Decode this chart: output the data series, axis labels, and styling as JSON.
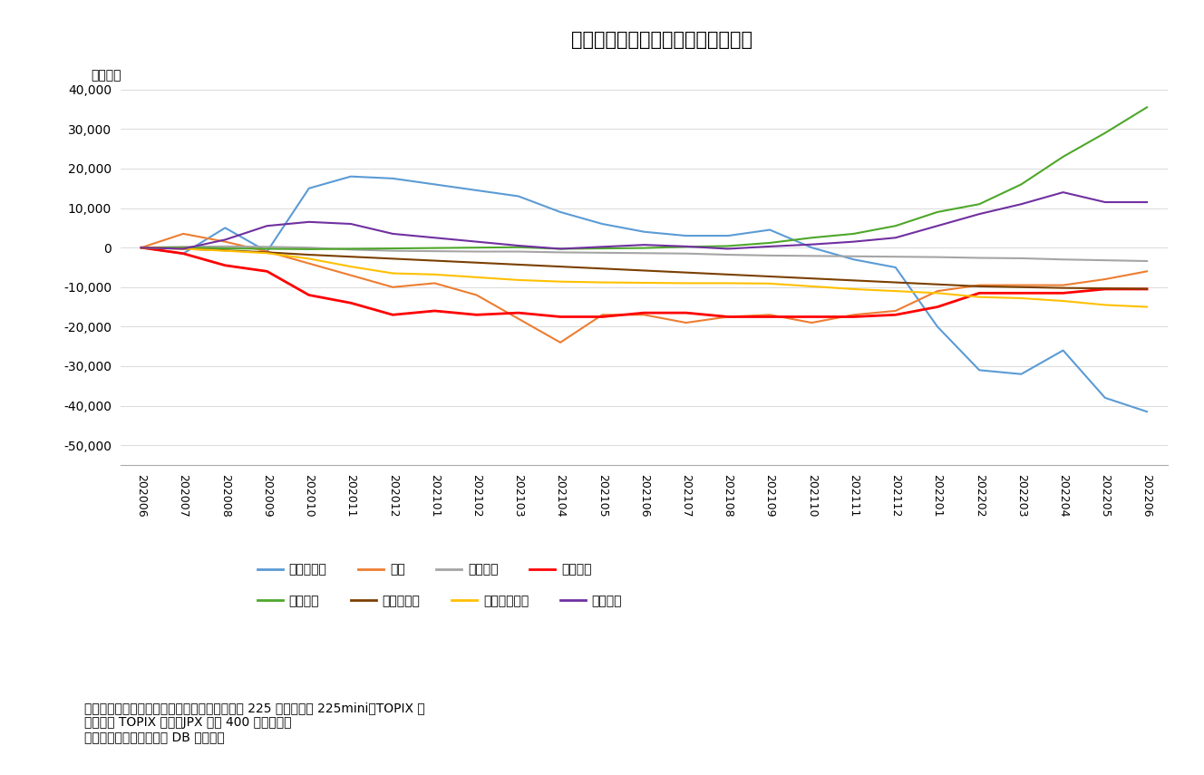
{
  "title": "図表２　投資部門別の累積売買状況",
  "ylabel": "（億円）",
  "note_line1": "（注）現物は東証・名証の二市場、先物は日経 225 先物、日経 225mini、TOPIX 先",
  "note_line2": "物、ミニ TOPIX 先物、JPX 日経 400 先物の合計",
  "note_line3": "（資料）ニッセイ基礎研 DB から作成",
  "xlabels": [
    "202006",
    "202007",
    "202008",
    "202009",
    "202010",
    "202011",
    "202012",
    "202101",
    "202102",
    "202103",
    "202104",
    "202105",
    "202106",
    "202107",
    "202108",
    "202109",
    "202110",
    "202111",
    "202112",
    "202201",
    "202202",
    "202203",
    "202204",
    "202205",
    "202206"
  ],
  "series": {
    "海外投資家": {
      "color": "#5B9BD5",
      "linewidth": 1.5,
      "values": [
        0,
        -1500,
        5000,
        -1000,
        15000,
        18000,
        17500,
        16000,
        14500,
        13000,
        9000,
        6000,
        4000,
        3000,
        3000,
        4500,
        0,
        -3000,
        -5000,
        -20000,
        -31000,
        -32000,
        -26000,
        -38000,
        -41500
      ]
    },
    "個人": {
      "color": "#ED7D31",
      "linewidth": 1.5,
      "values": [
        0,
        3500,
        1500,
        -1000,
        -4000,
        -7000,
        -10000,
        -9000,
        -12000,
        -18000,
        -24000,
        -17000,
        -17000,
        -19000,
        -17500,
        -17000,
        -19000,
        -17000,
        -16000,
        -11000,
        -9500,
        -9500,
        -9500,
        -8000,
        -6000
      ]
    },
    "証券会社": {
      "color": "#A5A5A5",
      "linewidth": 1.5,
      "values": [
        0,
        200,
        300,
        200,
        0,
        -500,
        -800,
        -900,
        -1000,
        -1000,
        -1200,
        -1300,
        -1400,
        -1500,
        -1800,
        -2000,
        -2100,
        -2200,
        -2300,
        -2400,
        -2600,
        -2700,
        -3000,
        -3200,
        -3400
      ]
    },
    "投資信託": {
      "color": "#FF0000",
      "linewidth": 2.0,
      "values": [
        0,
        -1500,
        -4500,
        -6000,
        -12000,
        -14000,
        -17000,
        -16000,
        -17000,
        -16500,
        -17500,
        -17500,
        -16500,
        -16500,
        -17500,
        -17500,
        -17500,
        -17500,
        -17000,
        -15000,
        -11500,
        -11500,
        -11500,
        -10500,
        -10500
      ]
    },
    "事業法人": {
      "color": "#4EA72A",
      "linewidth": 1.5,
      "values": [
        0,
        0,
        -200,
        -300,
        -400,
        -300,
        -200,
        -100,
        0,
        100,
        -300,
        -200,
        -100,
        200,
        400,
        1200,
        2500,
        3500,
        5500,
        9000,
        11000,
        16000,
        23000,
        29000,
        35500
      ]
    },
    "生保・損保": {
      "color": "#7B3F00",
      "linewidth": 1.5,
      "values": [
        0,
        -300,
        -700,
        -1200,
        -1800,
        -2300,
        -2800,
        -3300,
        -3800,
        -4300,
        -4800,
        -5300,
        -5800,
        -6300,
        -6800,
        -7300,
        -7800,
        -8300,
        -8800,
        -9300,
        -9800,
        -10000,
        -10200,
        -10300,
        -10400
      ]
    },
    "都銀・地銀等": {
      "color": "#FFC000",
      "linewidth": 1.5,
      "values": [
        0,
        -300,
        -800,
        -1400,
        -2800,
        -4800,
        -6500,
        -6800,
        -7500,
        -8200,
        -8600,
        -8800,
        -8900,
        -9000,
        -9000,
        -9100,
        -9800,
        -10500,
        -11000,
        -11500,
        -12500,
        -12800,
        -13500,
        -14500,
        -15000
      ]
    },
    "信託銀行": {
      "color": "#7030A0",
      "linewidth": 1.5,
      "values": [
        0,
        -300,
        2000,
        5500,
        6500,
        6000,
        3500,
        2500,
        1500,
        500,
        -300,
        200,
        700,
        300,
        -300,
        300,
        800,
        1500,
        2500,
        5500,
        8500,
        11000,
        14000,
        11500,
        11500
      ]
    }
  },
  "ylim": [
    -55000,
    45000
  ],
  "yticks": [
    -50000,
    -40000,
    -30000,
    -20000,
    -10000,
    0,
    10000,
    20000,
    30000,
    40000
  ],
  "background_color": "#FFFFFF",
  "legend_row1": [
    {
      "label": "海外投資家",
      "color": "#5B9BD5"
    },
    {
      "label": "個人",
      "color": "#ED7D31"
    },
    {
      "label": "証券会社",
      "color": "#A5A5A5"
    },
    {
      "label": "投資信託",
      "color": "#FF0000"
    }
  ],
  "legend_row2": [
    {
      "label": "事業法人",
      "color": "#4EA72A"
    },
    {
      "label": "生保・損保",
      "color": "#7B3F00"
    },
    {
      "label": "都銀・地銀等",
      "color": "#FFC000"
    },
    {
      "label": "信託銀行",
      "color": "#7030A0"
    }
  ]
}
